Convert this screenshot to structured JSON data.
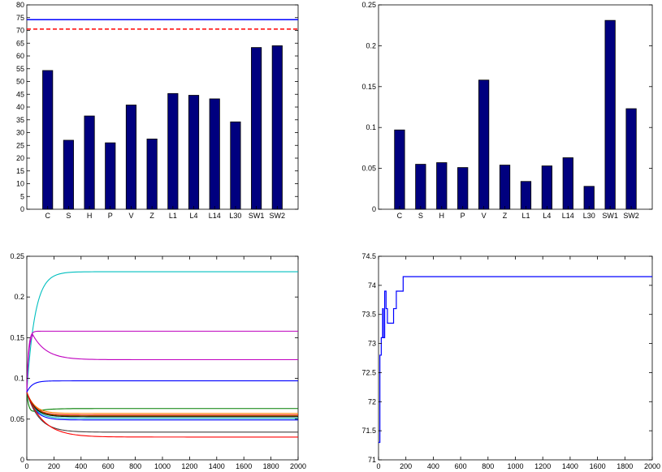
{
  "chart_data": [
    {
      "type": "bar",
      "categories": [
        "C",
        "S",
        "H",
        "P",
        "V",
        "Z",
        "L1",
        "L4",
        "L14",
        "L30",
        "SW1",
        "SW2"
      ],
      "values": [
        54.3,
        27.0,
        36.5,
        26.0,
        40.8,
        27.5,
        45.3,
        44.6,
        43.2,
        34.2,
        63.3,
        64.0
      ],
      "ylim": [
        0,
        80
      ],
      "yticks": [
        0,
        5,
        10,
        15,
        20,
        25,
        30,
        35,
        40,
        45,
        50,
        55,
        60,
        65,
        70,
        75,
        80
      ],
      "hlines": [
        {
          "y": 74.2,
          "color": "#0000ff",
          "style": "solid"
        },
        {
          "y": 70.5,
          "color": "#ff0000",
          "style": "dashed"
        }
      ],
      "bar_color": "#00007f"
    },
    {
      "type": "bar",
      "categories": [
        "C",
        "S",
        "H",
        "P",
        "V",
        "Z",
        "L1",
        "L4",
        "L14",
        "L30",
        "SW1",
        "SW2"
      ],
      "values": [
        0.097,
        0.055,
        0.057,
        0.051,
        0.158,
        0.054,
        0.034,
        0.053,
        0.063,
        0.028,
        0.231,
        0.123
      ],
      "ylim": [
        0,
        0.25
      ],
      "yticks": [
        "0",
        "0.05",
        "0.1",
        "0.15",
        "0.2",
        "0.25"
      ],
      "bar_color": "#00007f"
    },
    {
      "type": "line",
      "xlim": [
        0,
        2000
      ],
      "ylim": [
        0,
        0.25
      ],
      "xticks": [
        "0",
        "200",
        "400",
        "600",
        "800",
        "1000",
        "1200",
        "1400",
        "1600",
        "1800",
        "2000"
      ],
      "yticks": [
        "0",
        "0.05",
        "0.1",
        "0.15",
        "0.2",
        "0.25"
      ],
      "series": [
        {
          "color": "#00bfbf",
          "start": 0.083,
          "final": 0.231,
          "rate": 60
        },
        {
          "color": "#bf00bf",
          "start": 0.083,
          "final": 0.158,
          "rate": 12,
          "overshoot": 0.0
        },
        {
          "color": "#bf00bf",
          "start": 0.083,
          "final": 0.123,
          "rate": 100,
          "peak": 0.155,
          "peak_x": 40
        },
        {
          "color": "#0000ff",
          "start": 0.083,
          "final": 0.097,
          "rate": 40
        },
        {
          "color": "#007f00",
          "start": 0.083,
          "final": 0.063,
          "rate": 80,
          "dip": 0.055
        },
        {
          "color": "#ff7f00",
          "start": 0.083,
          "final": 0.057,
          "rate": 60
        },
        {
          "color": "#ff0000",
          "start": 0.083,
          "final": 0.055,
          "rate": 60
        },
        {
          "color": "#7f7f00",
          "start": 0.083,
          "final": 0.054,
          "rate": 60
        },
        {
          "color": "#000000",
          "start": 0.083,
          "final": 0.053,
          "rate": 60
        },
        {
          "color": "#00bfbf",
          "start": 0.083,
          "final": 0.051,
          "rate": 60
        },
        {
          "color": "#0000ff",
          "start": 0.083,
          "final": 0.049,
          "rate": 60
        },
        {
          "color": "#404040",
          "start": 0.083,
          "final": 0.034,
          "rate": 90
        },
        {
          "color": "#ff0000",
          "start": 0.083,
          "final": 0.028,
          "rate": 120
        }
      ]
    },
    {
      "type": "line",
      "xlim": [
        0,
        2000
      ],
      "ylim": [
        71,
        74.5
      ],
      "xticks": [
        "0",
        "200",
        "400",
        "600",
        "800",
        "1000",
        "1200",
        "1400",
        "1600",
        "1800",
        "2000"
      ],
      "yticks": [
        "71",
        "71.5",
        "72",
        "72.5",
        "73",
        "73.5",
        "74",
        "74.5"
      ],
      "series": [
        {
          "color": "#0000ff",
          "step": true,
          "points": [
            [
              0,
              71.3
            ],
            [
              10,
              72.8
            ],
            [
              20,
              73.1
            ],
            [
              30,
              73.6
            ],
            [
              35,
              73.1
            ],
            [
              45,
              73.9
            ],
            [
              55,
              73.6
            ],
            [
              65,
              73.35
            ],
            [
              110,
              73.6
            ],
            [
              130,
              73.9
            ],
            [
              180,
              74.15
            ],
            [
              2000,
              74.15
            ]
          ]
        }
      ]
    }
  ]
}
